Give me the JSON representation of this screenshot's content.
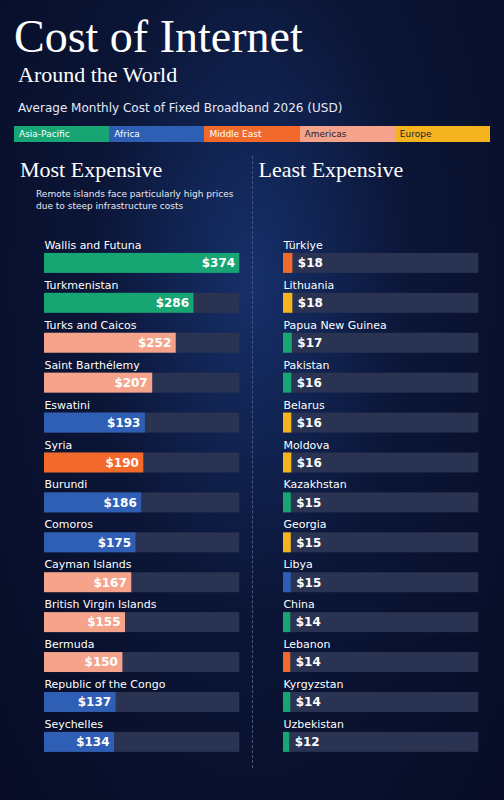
{
  "header": {
    "title": "Cost of Internet",
    "title_line2": "Around the World",
    "subtitle": "Average Monthly Cost of Fixed Broadband 2026 (USD)",
    "regions": [
      {
        "name": "Asia-Pacific",
        "color": "#17a574"
      },
      {
        "name": "Africa",
        "color": "#2f5fb5"
      },
      {
        "name": "Middle East",
        "color": "#f26a2b"
      },
      {
        "name": "Americas",
        "color": "#f5a48b"
      },
      {
        "name": "Europe",
        "color": "#f4b41f"
      }
    ]
  },
  "chart_data": [
    {
      "type": "bar",
      "title": "Most Expensive",
      "orientation": "horizontal",
      "annotation": "Remote islands face particularly high prices due to steep infrastructure costs",
      "categories": [
        "Wallis and Futuna",
        "Turkmenistan",
        "Turks and Caicos",
        "Saint Barthélemy",
        "Eswatini",
        "Syria",
        "Burundi",
        "Comoros",
        "Cayman Islands",
        "British Virgin Islands",
        "Bermuda",
        "Republic of the Congo",
        "Seychelles"
      ],
      "values": [
        374,
        286,
        252,
        207,
        193,
        190,
        186,
        175,
        167,
        155,
        150,
        137,
        134
      ],
      "value_labels": [
        "$374",
        "$286",
        "$252",
        "$207",
        "$193",
        "$190",
        "$186",
        "$175",
        "$167",
        "$155",
        "$150",
        "$137",
        "$134"
      ],
      "colors": [
        "#17a574",
        "#17a574",
        "#f5a48b",
        "#f5a48b",
        "#2f5fb5",
        "#f26a2b",
        "#2f5fb5",
        "#2f5fb5",
        "#f5a48b",
        "#f5a48b",
        "#f5a48b",
        "#2f5fb5",
        "#2f5fb5"
      ],
      "xlim": [
        0,
        374
      ],
      "data_labels": true,
      "tick_labels": false
    },
    {
      "type": "bar",
      "title": "Least Expensive",
      "orientation": "horizontal",
      "categories": [
        "Türkiye",
        "Lithuania",
        "Papua New Guinea",
        "Pakistan",
        "Belarus",
        "Moldova",
        "Kazakhstan",
        "Georgia",
        "Libya",
        "China",
        "Lebanon",
        "Kyrgyzstan",
        "Uzbekistan"
      ],
      "values": [
        18,
        18,
        17,
        16,
        16,
        16,
        15,
        15,
        15,
        14,
        14,
        14,
        12
      ],
      "value_labels": [
        "$18",
        "$18",
        "$17",
        "$16",
        "$16",
        "$16",
        "$15",
        "$15",
        "$15",
        "$14",
        "$14",
        "$14",
        "$12"
      ],
      "colors": [
        "#f26a2b",
        "#f4b41f",
        "#17a574",
        "#17a574",
        "#f4b41f",
        "#f4b41f",
        "#17a574",
        "#f4b41f",
        "#2f5fb5",
        "#17a574",
        "#f26a2b",
        "#17a574",
        "#17a574"
      ],
      "xlim": [
        0,
        374
      ],
      "data_labels": true,
      "tick_labels": false
    }
  ]
}
